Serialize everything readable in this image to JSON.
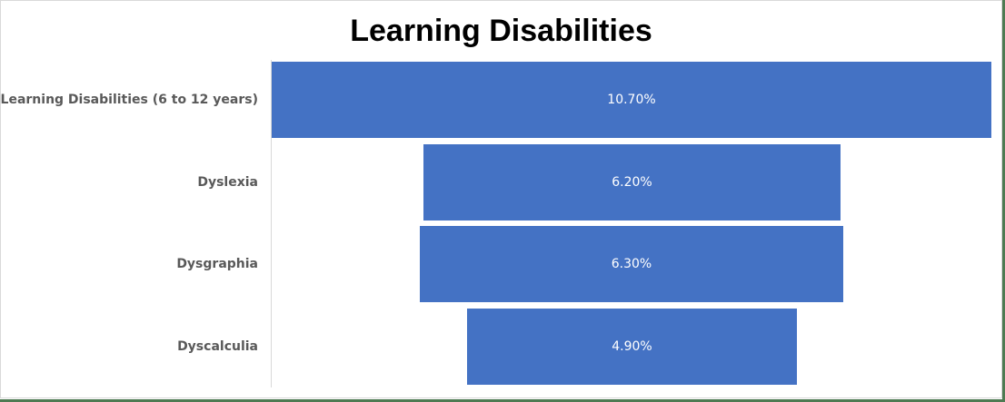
{
  "chart_data": {
    "type": "funnel",
    "title": "Learning Disabilities",
    "categories": [
      "Learning Disabilities (6 to 12 years)",
      "Dyslexia",
      "Dysgraphia",
      "Dyscalculia"
    ],
    "values": [
      10.7,
      6.2,
      6.3,
      4.9
    ],
    "value_labels": [
      "10.70%",
      "6.20%",
      "6.30%",
      "4.90%"
    ],
    "unit": "%",
    "bar_color": "#4472c4",
    "grid": false,
    "legend": "none"
  }
}
